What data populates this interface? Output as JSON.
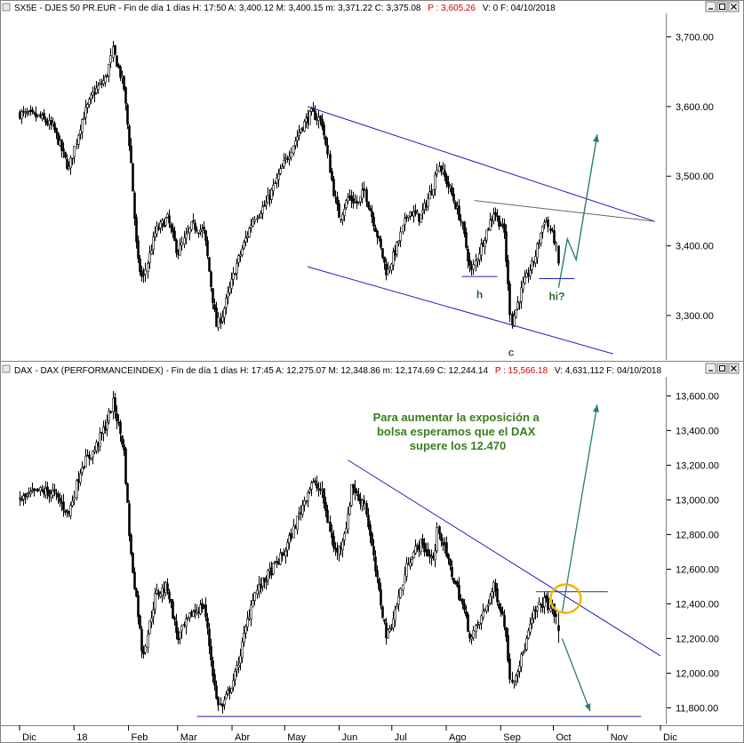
{
  "panels": [
    {
      "header": "SX5E - DJES 50 PR.EUR - Fin de día 1 días H: 17:50 A: 3,400.12 M: 3,400.15 m: 3,371.22 C: 3,375.08",
      "header_red": "P : 3,605.26",
      "header_tail": "V: 0 F: 04/10/2018"
    },
    {
      "header": "DAX - DAX (PERFORMANCEINDEX) - Fin de día 1 días H: 17:45 A: 12,275.07 M: 12,348.86 m: 12,174.69 C: 12,244.14",
      "header_red": "P : 15,566.18",
      "header_tail": "V: 4,631,112 F: 04/10/2018"
    }
  ],
  "annotation_text": [
    "Para aumentar la exposición a",
    "bolsa esperamos que el DAX",
    "supere los 12.470"
  ],
  "x_axis_labels": [
    "Dic",
    "18",
    "Feb",
    "Mar",
    "Abr",
    "May",
    "Jun",
    "Jul",
    "Ago",
    "Sep",
    "Oct",
    "Nov",
    "Dic"
  ],
  "colors": {
    "candles": "#000000",
    "trendlines": "#1f1fbf",
    "flat_line": "#666666",
    "arrows": "#2a7a7a",
    "pattern_labels": "#2e6b2e",
    "annotation": "#3a7d1e",
    "highlight_circle": "#f0b400",
    "header_red": "#d40000"
  },
  "chart_data": [
    {
      "type": "candlestick",
      "title": "SX5E - DJES 50 PR.EUR",
      "yaxis": {
        "ticks": [
          3300,
          3400,
          3500,
          3600,
          3700
        ],
        "tick_labels": [
          "3,300.00",
          "3,400.00",
          "3,500.00",
          "3,600.00",
          "3,700.00"
        ],
        "range": [
          3240,
          3730
        ]
      },
      "close_path": [
        [
          "2017-12-01",
          3590
        ],
        [
          "2017-12-12",
          3585
        ],
        [
          "2017-12-20",
          3570
        ],
        [
          "2017-12-29",
          3510
        ],
        [
          "2018-01-05",
          3580
        ],
        [
          "2018-01-12",
          3620
        ],
        [
          "2018-01-19",
          3640
        ],
        [
          "2018-01-23",
          3680
        ],
        [
          "2018-01-29",
          3630
        ],
        [
          "2018-02-02",
          3530
        ],
        [
          "2018-02-06",
          3380
        ],
        [
          "2018-02-09",
          3350
        ],
        [
          "2018-02-16",
          3420
        ],
        [
          "2018-02-23",
          3440
        ],
        [
          "2018-03-01",
          3390
        ],
        [
          "2018-03-09",
          3430
        ],
        [
          "2018-03-16",
          3420
        ],
        [
          "2018-03-23",
          3285
        ],
        [
          "2018-03-26",
          3300
        ],
        [
          "2018-04-03",
          3370
        ],
        [
          "2018-04-13",
          3440
        ],
        [
          "2018-04-20",
          3460
        ],
        [
          "2018-05-01",
          3520
        ],
        [
          "2018-05-10",
          3570
        ],
        [
          "2018-05-16",
          3590
        ],
        [
          "2018-05-22",
          3580
        ],
        [
          "2018-05-29",
          3470
        ],
        [
          "2018-06-01",
          3440
        ],
        [
          "2018-06-06",
          3470
        ],
        [
          "2018-06-12",
          3460
        ],
        [
          "2018-06-15",
          3480
        ],
        [
          "2018-06-22",
          3420
        ],
        [
          "2018-06-28",
          3360
        ],
        [
          "2018-07-04",
          3400
        ],
        [
          "2018-07-10",
          3450
        ],
        [
          "2018-07-17",
          3440
        ],
        [
          "2018-07-25",
          3490
        ],
        [
          "2018-07-27",
          3520
        ],
        [
          "2018-08-03",
          3480
        ],
        [
          "2018-08-10",
          3430
        ],
        [
          "2018-08-15",
          3360
        ],
        [
          "2018-08-22",
          3410
        ],
        [
          "2018-08-28",
          3450
        ],
        [
          "2018-09-03",
          3420
        ],
        [
          "2018-09-06",
          3310
        ],
        [
          "2018-09-07",
          3290
        ],
        [
          "2018-09-13",
          3340
        ],
        [
          "2018-09-20",
          3380
        ],
        [
          "2018-09-26",
          3440
        ],
        [
          "2018-10-01",
          3410
        ],
        [
          "2018-10-04",
          3375
        ]
      ],
      "last": {
        "open": 3400.12,
        "high": 3400.15,
        "low": 3371.22,
        "close": 3375.08
      },
      "trendlines": [
        {
          "from": [
            "2018-05-14",
            3600
          ],
          "to": [
            "2018-11-28",
            3435
          ]
        },
        {
          "from": [
            "2018-05-14",
            3370
          ],
          "to": [
            "2018-11-04",
            3245
          ]
        },
        {
          "from": [
            "2018-08-17",
            3465
          ],
          "to": [
            "2018-11-28",
            3435
          ]
        }
      ],
      "markers": [
        {
          "label": "h",
          "date": "2018-08-20",
          "value": 3348
        },
        {
          "label": "c",
          "date": "2018-09-07",
          "value": 3270
        },
        {
          "label": "hi?",
          "date": "2018-10-03",
          "value": 3345
        }
      ],
      "projection_arrow": [
        [
          "2018-10-04",
          3340
        ],
        [
          "2018-10-09",
          3410
        ],
        [
          "2018-10-14",
          3380
        ],
        [
          "2018-10-26",
          3560
        ]
      ]
    },
    {
      "type": "candlestick",
      "title": "DAX - DAX (PERFORMANCEINDEX)",
      "yaxis": {
        "ticks": [
          11800,
          12000,
          12200,
          12400,
          12600,
          12800,
          13000,
          13200,
          13400,
          13600
        ],
        "tick_labels": [
          "11,800.00",
          "12,000.00",
          "12,200.00",
          "12,400.00",
          "12,600.00",
          "12,800.00",
          "13,000.00",
          "13,200.00",
          "13,400.00",
          "13,600.00"
        ],
        "range": [
          11720,
          13700
        ]
      },
      "close_path": [
        [
          "2017-12-01",
          13000
        ],
        [
          "2017-12-12",
          13050
        ],
        [
          "2017-12-20",
          13040
        ],
        [
          "2017-12-29",
          12920
        ],
        [
          "2018-01-05",
          13200
        ],
        [
          "2018-01-12",
          13280
        ],
        [
          "2018-01-19",
          13430
        ],
        [
          "2018-01-23",
          13560
        ],
        [
          "2018-01-29",
          13300
        ],
        [
          "2018-02-02",
          12700
        ],
        [
          "2018-02-06",
          12390
        ],
        [
          "2018-02-09",
          12100
        ],
        [
          "2018-02-16",
          12450
        ],
        [
          "2018-02-23",
          12500
        ],
        [
          "2018-03-01",
          12200
        ],
        [
          "2018-03-09",
          12350
        ],
        [
          "2018-03-16",
          12390
        ],
        [
          "2018-03-23",
          11850
        ],
        [
          "2018-03-26",
          11800
        ],
        [
          "2018-04-03",
          12000
        ],
        [
          "2018-04-13",
          12450
        ],
        [
          "2018-04-20",
          12550
        ],
        [
          "2018-05-01",
          12700
        ],
        [
          "2018-05-10",
          12950
        ],
        [
          "2018-05-16",
          13100
        ],
        [
          "2018-05-22",
          13050
        ],
        [
          "2018-05-29",
          12700
        ],
        [
          "2018-06-01",
          12720
        ],
        [
          "2018-06-06",
          12900
        ],
        [
          "2018-06-08",
          13100
        ],
        [
          "2018-06-12",
          13000
        ],
        [
          "2018-06-15",
          13000
        ],
        [
          "2018-06-22",
          12550
        ],
        [
          "2018-06-28",
          12200
        ],
        [
          "2018-07-04",
          12400
        ],
        [
          "2018-07-10",
          12650
        ],
        [
          "2018-07-17",
          12750
        ],
        [
          "2018-07-25",
          12650
        ],
        [
          "2018-07-27",
          12850
        ],
        [
          "2018-08-03",
          12600
        ],
        [
          "2018-08-10",
          12400
        ],
        [
          "2018-08-15",
          12200
        ],
        [
          "2018-08-22",
          12350
        ],
        [
          "2018-08-28",
          12500
        ],
        [
          "2018-09-03",
          12300
        ],
        [
          "2018-09-06",
          12000
        ],
        [
          "2018-09-07",
          11950
        ],
        [
          "2018-09-13",
          12100
        ],
        [
          "2018-09-20",
          12350
        ],
        [
          "2018-09-26",
          12420
        ],
        [
          "2018-10-01",
          12350
        ],
        [
          "2018-10-04",
          12244
        ]
      ],
      "last": {
        "open": 12275.07,
        "high": 12348.86,
        "low": 12174.69,
        "close": 12244.14
      },
      "trendlines": [
        {
          "from": [
            "2018-06-06",
            13230
          ],
          "to": [
            "2018-12-01",
            12100
          ]
        },
        {
          "from": [
            "2018-03-12",
            11750
          ],
          "to": [
            "2018-11-20",
            11750
          ]
        },
        {
          "from": [
            "2018-09-21",
            12470
          ],
          "to": [
            "2018-11-01",
            12470
          ]
        }
      ],
      "arrows": [
        {
          "from": [
            "2018-10-06",
            12350
          ],
          "to": [
            "2018-10-26",
            13550
          ]
        },
        {
          "from": [
            "2018-10-06",
            12200
          ],
          "to": [
            "2018-10-22",
            11780
          ]
        }
      ],
      "highlight": {
        "date": "2018-10-08",
        "value": 12430
      }
    }
  ]
}
